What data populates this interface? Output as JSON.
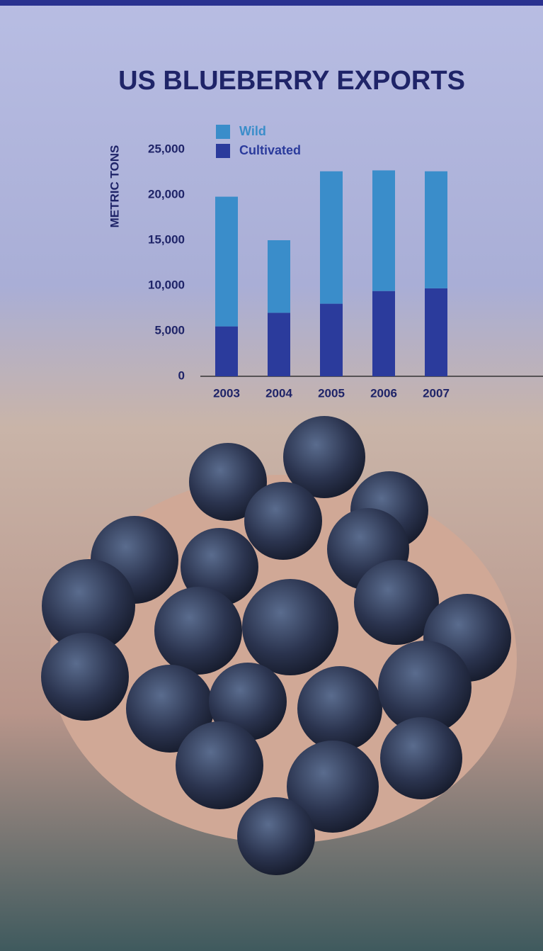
{
  "chart_data": {
    "type": "bar",
    "stacked": true,
    "title": "US BLUEBERRY EXPORTS",
    "y_label": "METRIC TONS",
    "categories": [
      "2003",
      "2004",
      "2005",
      "2006",
      "2007"
    ],
    "series": [
      {
        "name": "Cultivated",
        "color": "#2b3b9c",
        "values": [
          5500,
          7000,
          8000,
          9400,
          9700
        ]
      },
      {
        "name": "Wild",
        "color": "#3a8dca",
        "values": [
          14300,
          8000,
          14600,
          13300,
          12900
        ]
      }
    ],
    "ylim": [
      0,
      25000
    ],
    "yticks": [
      0,
      {
        "value": 5000,
        "label": "5,000"
      },
      {
        "value": 10000,
        "label": "10,000"
      },
      {
        "value": 15000,
        "label": "15,000"
      },
      {
        "value": 20000,
        "label": "20,000"
      },
      {
        "value": 25000,
        "label": "25,000"
      }
    ],
    "grid": false
  }
}
